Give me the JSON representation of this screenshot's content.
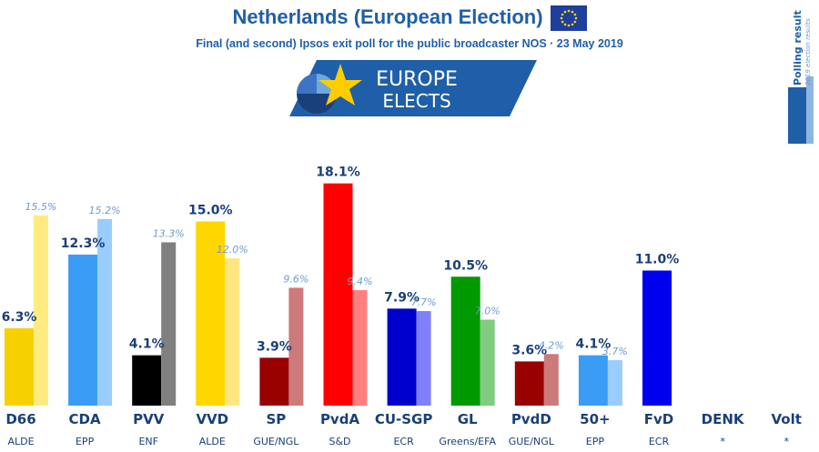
{
  "header": {
    "title": "Netherlands (European Election)",
    "subtitle": "Final (and second) Ipsos exit poll for the public broadcaster NOS · 23 May 2019"
  },
  "logo": {
    "line1": "EUROPE",
    "line2": "ELECTS"
  },
  "badge": {
    "title": "Polling result",
    "sub": "2019 election results"
  },
  "colors": {
    "accent": "#1f5fa8",
    "label_text": "#1a3f7a",
    "previous_label": "#6f9bd1"
  },
  "chart_data": {
    "type": "bar",
    "title": "",
    "ylim": [
      0,
      20
    ],
    "grid": false,
    "legend": "none",
    "categories": [
      "D66",
      "CDA",
      "PVV",
      "VVD",
      "SP",
      "PvdA",
      "CU-SGP",
      "GL",
      "PvdD",
      "50+",
      "FvD",
      "DENK",
      "Volt"
    ],
    "groups": [
      "ALDE",
      "EPP",
      "ENF",
      "ALDE",
      "GUE/NGL",
      "S&D",
      "ECR",
      "Greens/EFA",
      "GUE/NGL",
      "EPP",
      "ECR",
      "*",
      "*"
    ],
    "series": [
      {
        "values": [
          6.3,
          12.3,
          4.1,
          15.0,
          3.9,
          18.1,
          7.9,
          10.5,
          3.6,
          4.1,
          11.0,
          null,
          null
        ],
        "labels": [
          "6.3%",
          "12.3%",
          "4.1%",
          "15.0%",
          "3.9%",
          "18.1%",
          "7.9%",
          "10.5%",
          "3.6%",
          "4.1%",
          "11.0%",
          "",
          ""
        ],
        "colors": [
          "#f7d000",
          "#3b9cf5",
          "#000000",
          "#ffd700",
          "#990000",
          "#ff0000",
          "#0000cc",
          "#009900",
          "#990000",
          "#3b9cf5",
          "#0000ee",
          "",
          ""
        ]
      },
      {
        "values": [
          15.5,
          15.2,
          13.3,
          12.0,
          9.6,
          9.4,
          7.7,
          7.0,
          4.2,
          3.7,
          null,
          null,
          null
        ],
        "labels": [
          "15.5%",
          "15.2%",
          "13.3%",
          "12.0%",
          "9.6%",
          "9.4%",
          "7.7%",
          "7.0%",
          "4.2%",
          "3.7%",
          "",
          "",
          ""
        ],
        "colors": [
          "#ffeb80",
          "#99ccff",
          "#808080",
          "#ffe680",
          "#cc7a7a",
          "#ff7f7f",
          "#8080ff",
          "#80cc80",
          "#cc7a7a",
          "#99ccff",
          "",
          "",
          ""
        ]
      }
    ]
  }
}
